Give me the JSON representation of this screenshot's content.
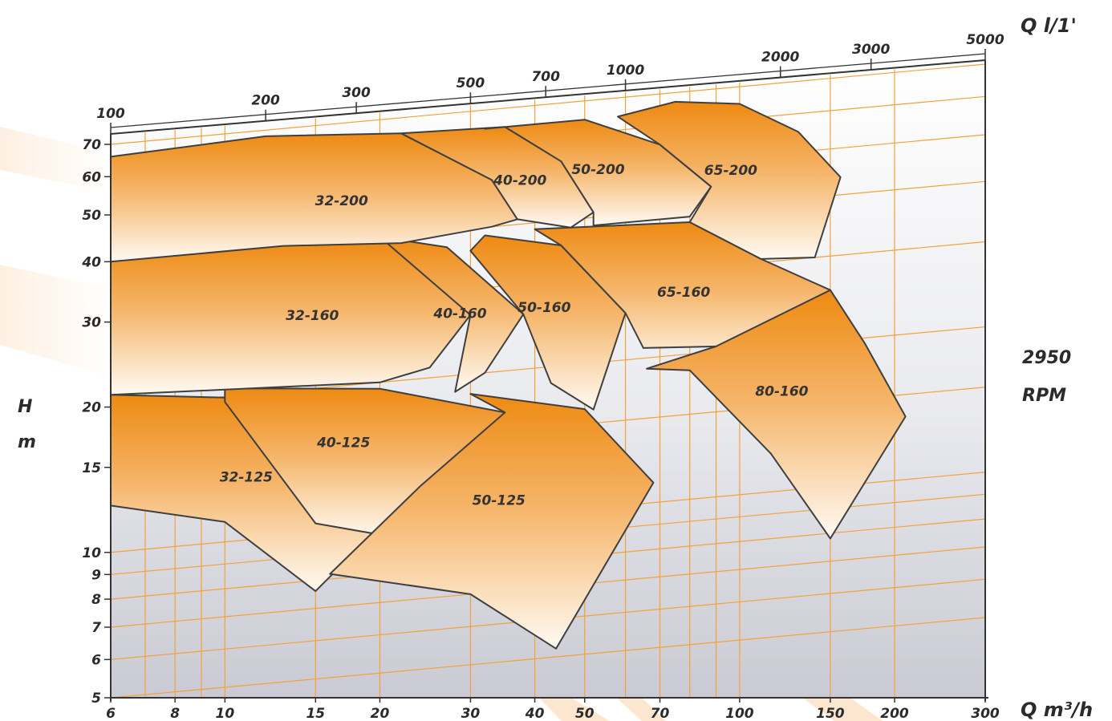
{
  "chart_data": {
    "type": "area",
    "scale": "log-log",
    "speed_label": "2950",
    "speed_unit": "RPM",
    "y_axis": {
      "label_line1": "H",
      "label_line2": "m",
      "ticks": [
        5,
        6,
        7,
        8,
        9,
        10,
        15,
        20,
        30,
        40,
        50,
        60,
        70
      ],
      "range": [
        5,
        70
      ]
    },
    "x_axis_m3h": {
      "label": "Q m³/h",
      "ticks": [
        6,
        8,
        10,
        15,
        20,
        30,
        40,
        50,
        70,
        100,
        150,
        200,
        300
      ],
      "range": [
        6,
        300
      ]
    },
    "x_axis_lmin": {
      "label": "Q l/1'",
      "ticks": [
        100,
        200,
        300,
        500,
        700,
        1000,
        2000,
        3000,
        5000
      ]
    },
    "pump_fields": [
      {
        "name": "32-125",
        "points": [
          [
            6,
            21.2
          ],
          [
            10,
            19.9
          ],
          [
            15,
            15.5
          ],
          [
            24,
            12.0
          ],
          [
            15,
            7.6
          ],
          [
            10,
            11.0
          ],
          [
            6,
            12.5
          ]
        ]
      },
      {
        "name": "40-125",
        "points": [
          [
            10,
            20.8
          ],
          [
            20,
            19.4
          ],
          [
            35,
            16.4
          ],
          [
            23,
            9.3
          ],
          [
            15,
            10.5
          ],
          [
            10,
            19.5
          ]
        ]
      },
      {
        "name": "50-125",
        "points": [
          [
            30,
            18.2
          ],
          [
            50,
            16.1
          ],
          [
            68,
            11.0
          ],
          [
            44,
            5.2
          ],
          [
            30,
            7.0
          ],
          [
            16,
            8.2
          ],
          [
            24,
            12.0
          ],
          [
            35,
            16.4
          ]
        ]
      },
      {
        "name": "32-160",
        "points": [
          [
            6,
            40.0
          ],
          [
            13,
            41.0
          ],
          [
            22,
            38.5
          ],
          [
            30,
            26.5
          ],
          [
            25,
            21.0
          ],
          [
            20,
            20.0
          ],
          [
            6,
            21.2
          ]
        ]
      },
      {
        "name": "40-160",
        "points": [
          [
            20,
            40.0
          ],
          [
            27,
            37.0
          ],
          [
            38,
            26.0
          ],
          [
            32,
            20.0
          ],
          [
            28,
            18.5
          ],
          [
            30,
            26.5
          ]
        ]
      },
      {
        "name": "50-160",
        "points": [
          [
            32,
            38.5
          ],
          [
            45,
            35.5
          ],
          [
            60,
            25.0
          ],
          [
            52,
            16.0
          ],
          [
            43,
            18.5
          ],
          [
            38,
            26.0
          ],
          [
            30,
            36.0
          ]
        ]
      },
      {
        "name": "65-160",
        "points": [
          [
            40,
            38.8
          ],
          [
            80,
            37.5
          ],
          [
            110,
            30.5
          ],
          [
            150,
            25.5
          ],
          [
            126,
            17.5
          ],
          [
            90,
            20.5
          ],
          [
            65,
            21.0
          ],
          [
            60,
            25.0
          ],
          [
            45,
            35.5
          ]
        ]
      },
      {
        "name": "80-160",
        "points": [
          [
            150,
            25.5
          ],
          [
            175,
            19.5
          ],
          [
            210,
            13.5
          ],
          [
            150,
            7.8
          ],
          [
            115,
            12.0
          ],
          [
            80,
            18.5
          ],
          [
            66,
            19.0
          ],
          [
            90,
            20.5
          ]
        ]
      },
      {
        "name": "32-200",
        "points": [
          [
            6,
            66.0
          ],
          [
            12,
            68.0
          ],
          [
            22,
            65.0
          ],
          [
            33,
            50.0
          ],
          [
            37,
            41.0
          ],
          [
            33,
            40.0
          ],
          [
            22,
            38.5
          ],
          [
            13,
            40.0
          ],
          [
            6,
            40.0
          ]
        ]
      },
      {
        "name": "40-200",
        "points": [
          [
            22,
            65.0
          ],
          [
            35,
            64.0
          ],
          [
            45,
            53.0
          ],
          [
            52,
            41.0
          ],
          [
            47,
            38.5
          ],
          [
            37,
            41.0
          ],
          [
            33,
            50.0
          ]
        ]
      },
      {
        "name": "50-200",
        "points": [
          [
            32,
            64.0
          ],
          [
            50,
            64.0
          ],
          [
            70,
            55.0
          ],
          [
            88,
            44.0
          ],
          [
            80,
            38.5
          ],
          [
            52,
            38.5
          ],
          [
            52,
            41.0
          ],
          [
            45,
            53.0
          ],
          [
            35,
            64.0
          ]
        ]
      },
      {
        "name": "65-200",
        "points": [
          [
            58,
            64.0
          ],
          [
            75,
            67.0
          ],
          [
            100,
            64.5
          ],
          [
            130,
            55.0
          ],
          [
            157,
            43.5
          ],
          [
            140,
            30.0
          ],
          [
            110,
            30.5
          ],
          [
            80,
            37.5
          ],
          [
            88,
            44.0
          ],
          [
            70,
            55.0
          ]
        ]
      }
    ]
  }
}
